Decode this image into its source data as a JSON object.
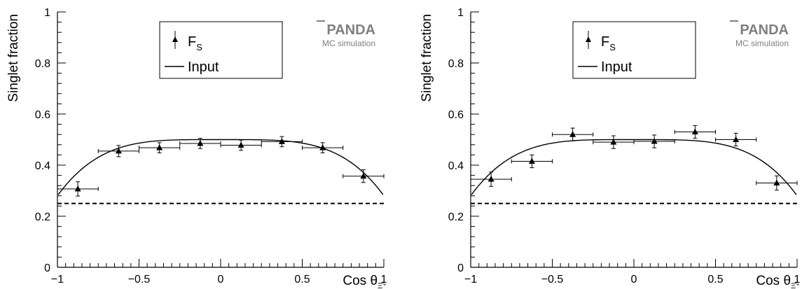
{
  "chart_data": [
    {
      "type": "scatter",
      "ylabel": "Singlet fraction",
      "xlabel": {
        "main": "Cos θ",
        "sub": "Ξ̄⁺"
      },
      "xlim": [
        -1,
        1
      ],
      "ylim": [
        0,
        1
      ],
      "xticks": [
        "−1",
        "−0.5",
        "0",
        "0.5",
        "1"
      ],
      "yticks": [
        "0",
        "0.2",
        "0.4",
        "0.6",
        "0.8",
        "1"
      ],
      "legend": {
        "fs_label": "F",
        "fs_sub": "S",
        "input_label": "Input",
        "placement": "top-center"
      },
      "watermark": {
        "title": "PANDA",
        "subtitle": "MC simulation"
      },
      "threshold": 0.25,
      "input_curve": {
        "a": 0.5,
        "c": 0.22
      },
      "series": [
        {
          "x": [
            -0.875,
            -0.625,
            -0.375,
            -0.125,
            0.125,
            0.375,
            0.625,
            0.875
          ],
          "xerr": [
            0.125,
            0.125,
            0.125,
            0.125,
            0.125,
            0.125,
            0.125,
            0.125
          ],
          "y": [
            0.307,
            0.455,
            0.468,
            0.485,
            0.478,
            0.492,
            0.468,
            0.357
          ],
          "yerr": [
            0.028,
            0.022,
            0.02,
            0.02,
            0.02,
            0.02,
            0.02,
            0.025
          ]
        }
      ]
    },
    {
      "type": "scatter",
      "ylabel": "Singlet fraction",
      "xlabel": {
        "main": "Cos θ",
        "sub": "Ξ̄⁺"
      },
      "xlim": [
        -1,
        1
      ],
      "ylim": [
        0,
        1
      ],
      "xticks": [
        "−1",
        "−0.5",
        "0",
        "0.5",
        "1"
      ],
      "yticks": [
        "0",
        "0.2",
        "0.4",
        "0.6",
        "0.8",
        "1"
      ],
      "legend": {
        "fs_label": "F",
        "fs_sub": "S",
        "input_label": "Input",
        "placement": "top-center"
      },
      "watermark": {
        "title": "PANDA",
        "subtitle": "MC simulation"
      },
      "threshold": 0.25,
      "input_curve": {
        "a": 0.5,
        "c": 0.22
      },
      "series": [
        {
          "x": [
            -0.875,
            -0.625,
            -0.375,
            -0.125,
            0.125,
            0.375,
            0.625,
            0.875
          ],
          "xerr": [
            0.125,
            0.125,
            0.125,
            0.125,
            0.125,
            0.125,
            0.125,
            0.125
          ],
          "y": [
            0.345,
            0.415,
            0.52,
            0.49,
            0.493,
            0.53,
            0.5,
            0.33
          ],
          "yerr": [
            0.028,
            0.025,
            0.025,
            0.025,
            0.025,
            0.025,
            0.025,
            0.028
          ]
        }
      ]
    }
  ]
}
